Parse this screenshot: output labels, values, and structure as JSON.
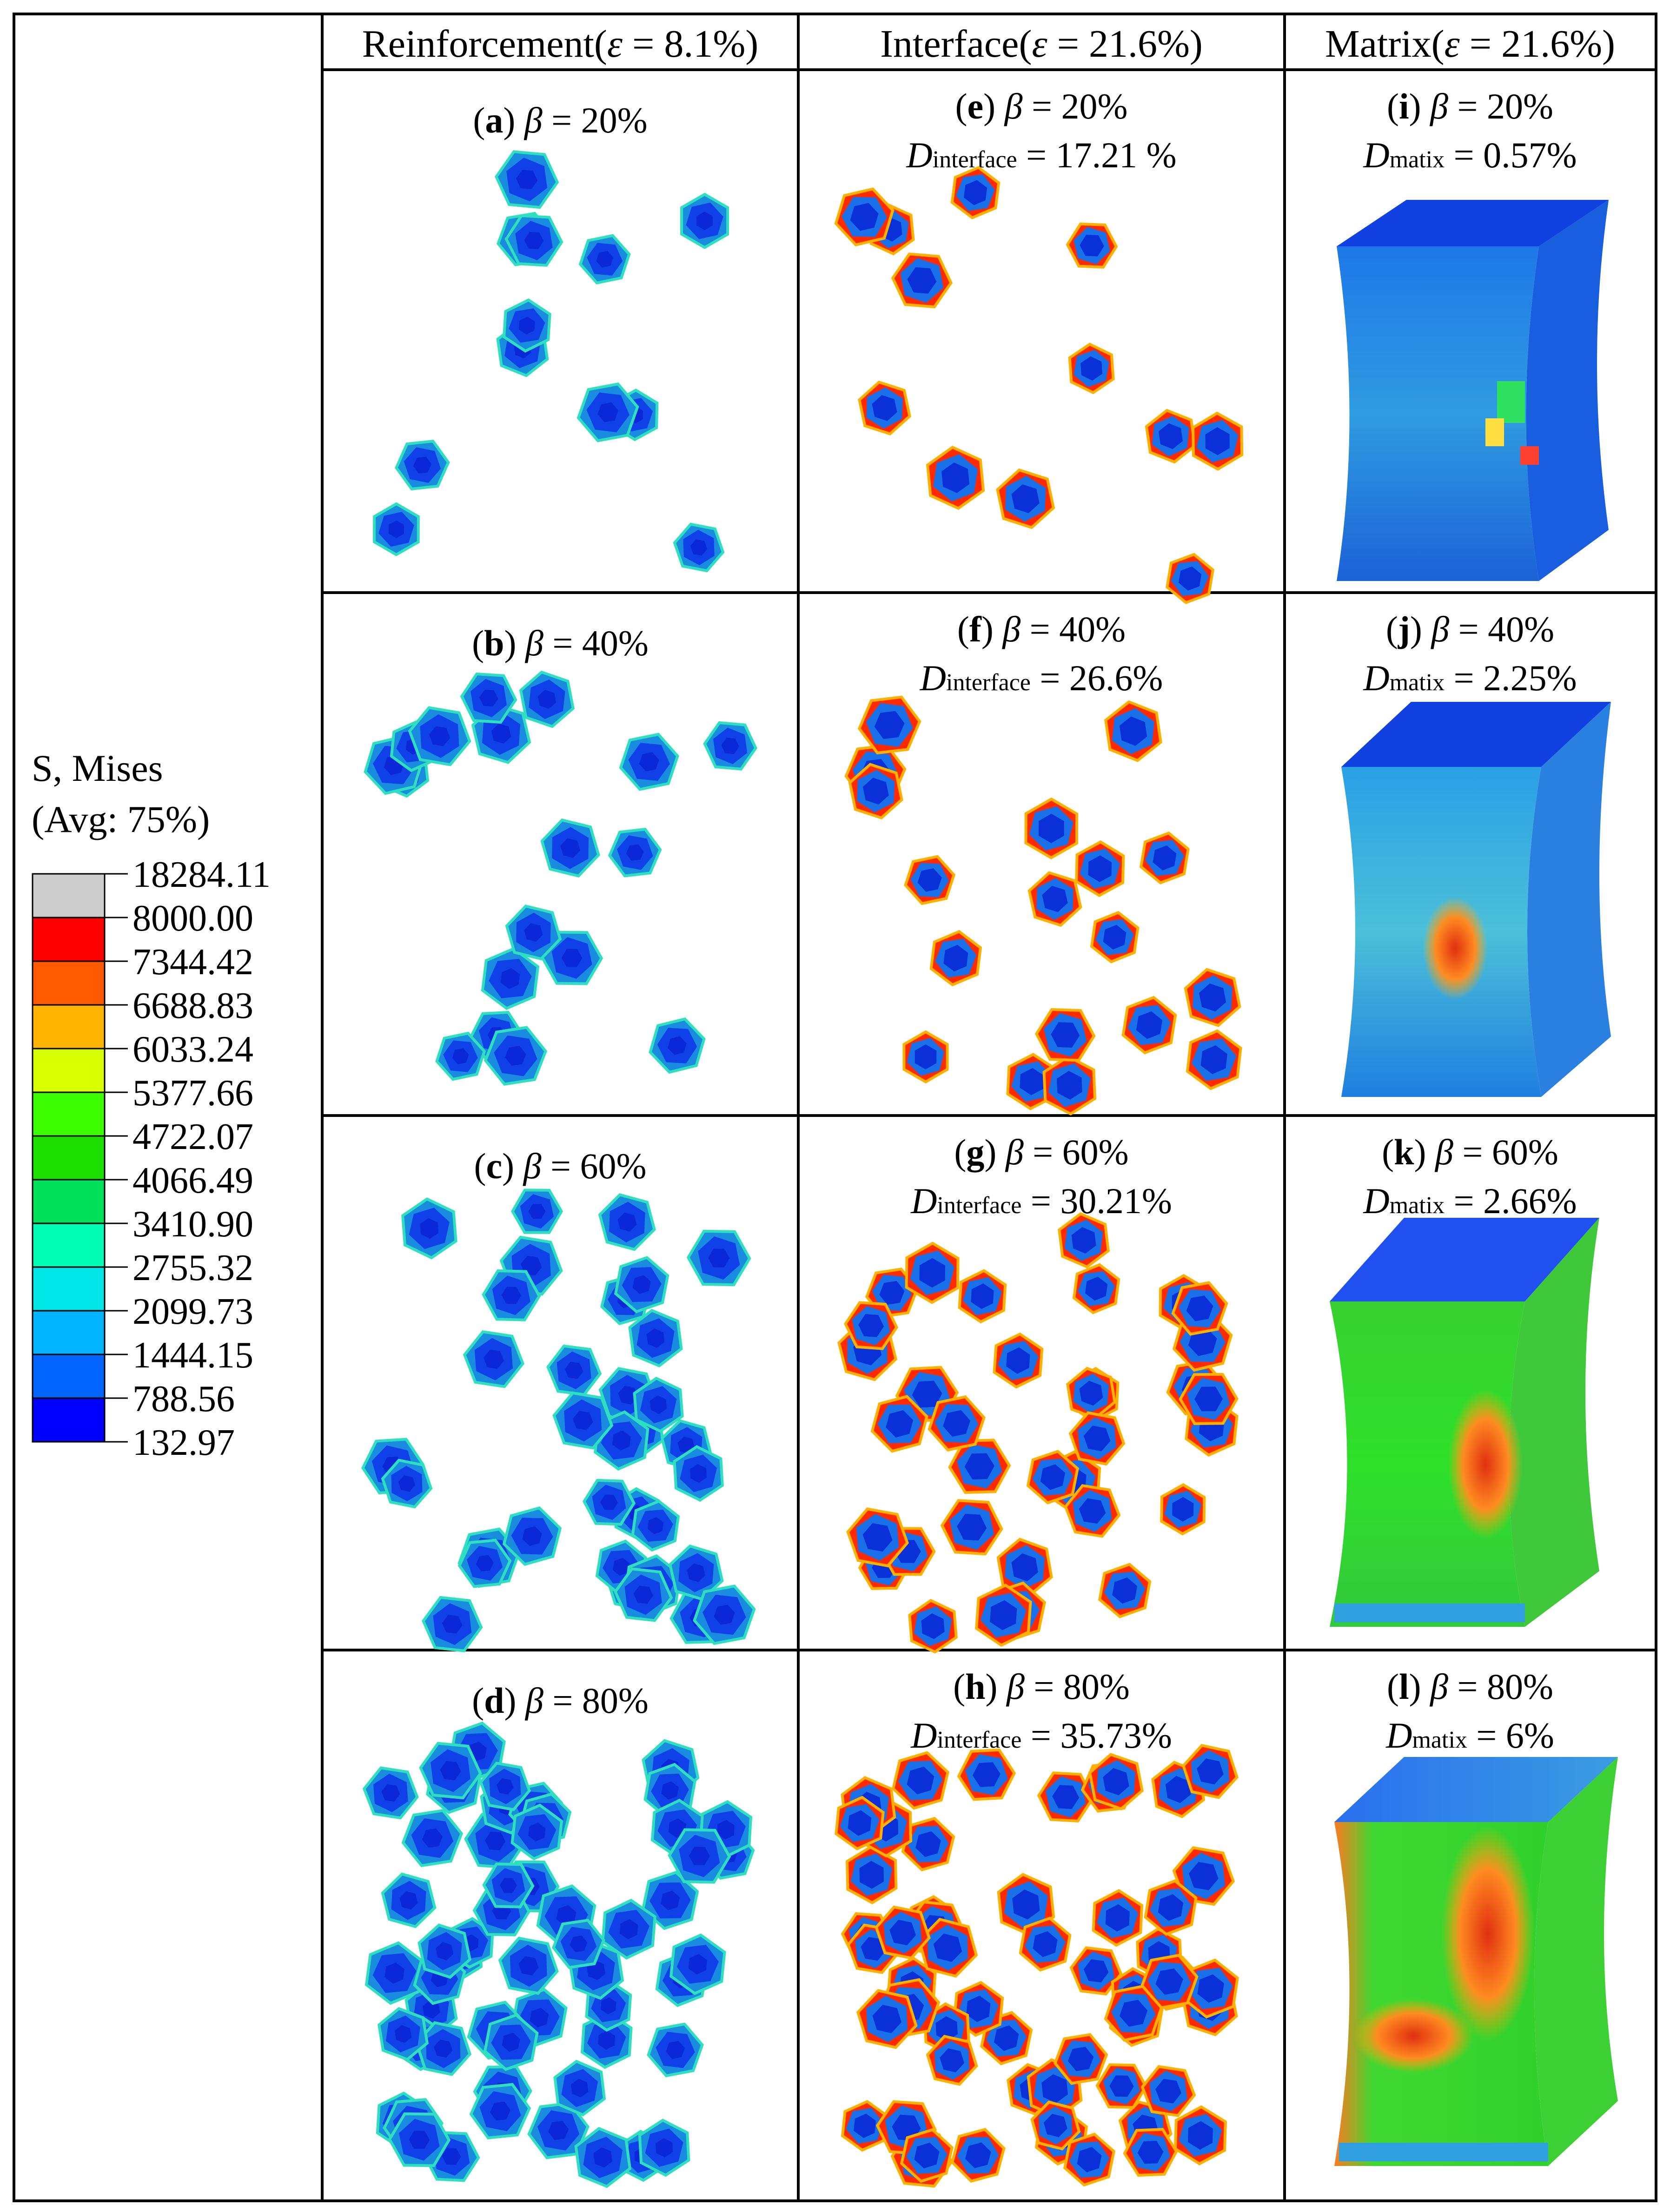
{
  "columns": [
    {
      "name": "Reinforcement",
      "strain": "8.1%"
    },
    {
      "name": "Interface",
      "strain": "21.6%"
    },
    {
      "name": "Matrix",
      "strain": "21.6%"
    }
  ],
  "legend": {
    "title": "S, Mises",
    "subtitle": "(Avg: 75%)",
    "values": [
      "18284.11",
      "8000.00",
      "7344.42",
      "6688.83",
      "6033.24",
      "5377.66",
      "4722.07",
      "4066.49",
      "3410.90",
      "2755.32",
      "2099.73",
      "1444.15",
      "788.56",
      "132.97"
    ],
    "colors": [
      "#cccccc",
      "#ff0000",
      "#ff5a00",
      "#ffb400",
      "#d8ff00",
      "#3cff00",
      "#1ee000",
      "#00e05a",
      "#00ffb4",
      "#00e5e5",
      "#00b4ff",
      "#0064ff",
      "#0000ff"
    ]
  },
  "panels": [
    {
      "letter": "a",
      "beta": "20%",
      "metric": null
    },
    {
      "letter": "e",
      "beta": "20%",
      "metric": {
        "sub": "interface",
        "value": "17.21 %"
      }
    },
    {
      "letter": "i",
      "beta": "20%",
      "metric": {
        "sub": "matix",
        "value": "0.57%"
      }
    },
    {
      "letter": "b",
      "beta": "40%",
      "metric": null
    },
    {
      "letter": "f",
      "beta": "40%",
      "metric": {
        "sub": "interface",
        "value": "26.6%"
      }
    },
    {
      "letter": "j",
      "beta": "40%",
      "metric": {
        "sub": "matix",
        "value": "2.25%"
      }
    },
    {
      "letter": "c",
      "beta": "60%",
      "metric": null
    },
    {
      "letter": "g",
      "beta": "60%",
      "metric": {
        "sub": "interface",
        "value": "30.21%"
      }
    },
    {
      "letter": "k",
      "beta": "60%",
      "metric": {
        "sub": "matix",
        "value": "2.66%"
      }
    },
    {
      "letter": "d",
      "beta": "80%",
      "metric": null
    },
    {
      "letter": "h",
      "beta": "80%",
      "metric": {
        "sub": "interface",
        "value": "35.73%"
      }
    },
    {
      "letter": "l",
      "beta": "80%",
      "metric": {
        "sub": "matix",
        "value": "6%"
      }
    }
  ]
}
